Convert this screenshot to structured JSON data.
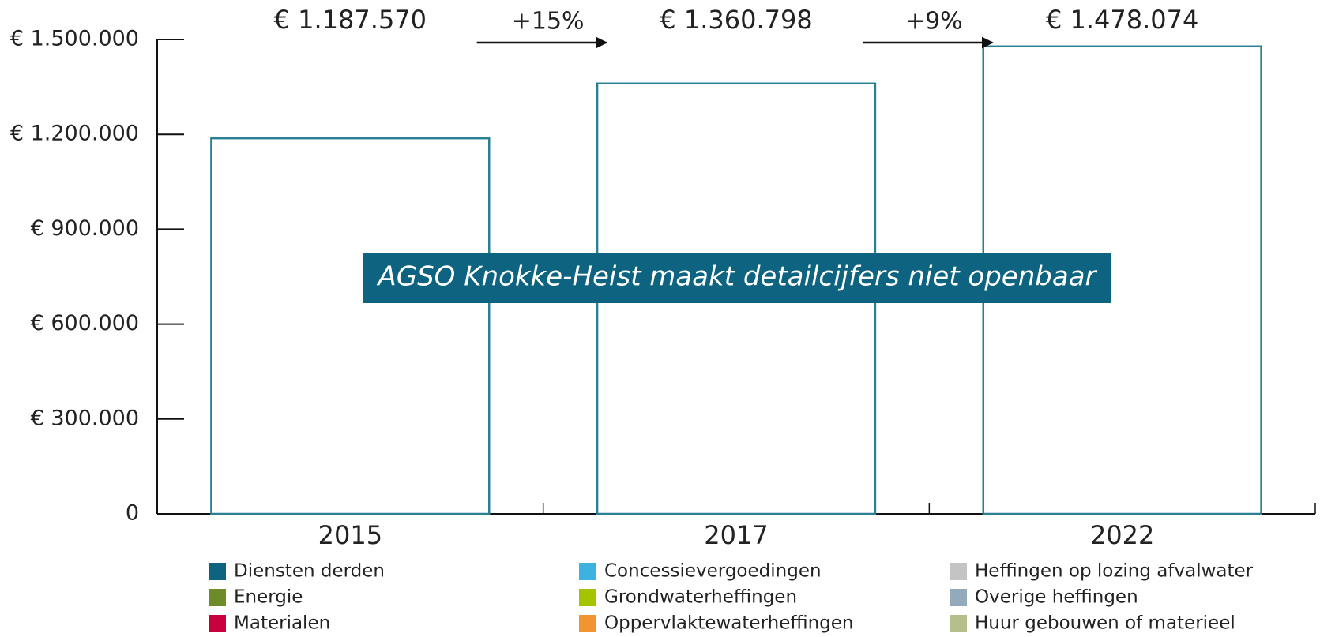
{
  "chart_data": {
    "type": "bar",
    "categories": [
      "2015",
      "2017",
      "2022"
    ],
    "values": [
      1187570,
      1360798,
      1478074
    ],
    "value_labels": [
      "€ 1.187.570",
      "€ 1.360.798",
      "€ 1.478.074"
    ],
    "color": "#2a7f92",
    "ylim": [
      0,
      1500000
    ],
    "yticks": [
      {
        "value": 0,
        "label": "0"
      },
      {
        "value": 300000,
        "label": "€ 300.000"
      },
      {
        "value": 600000,
        "label": "€ 600.000"
      },
      {
        "value": 900000,
        "label": "€ 900.000"
      },
      {
        "value": 1200000,
        "label": "€ 1.200.000"
      },
      {
        "value": 1500000,
        "label": "€ 1.500.000"
      }
    ],
    "annotations": [
      "+15%",
      "+9%",
      "AGSO Knokke-Heist maakt detailcijfers niet openbaar"
    ],
    "legend": [
      {
        "name": "Diensten derden",
        "color": "#0e6480"
      },
      {
        "name": "Energie",
        "color": "#6e8b2a"
      },
      {
        "name": "Materialen",
        "color": "#c8003c"
      },
      {
        "name": "Concessievergoedingen",
        "color": "#3db1e0"
      },
      {
        "name": "Grondwaterheffingen",
        "color": "#a5c400"
      },
      {
        "name": "Oppervlaktewaterheffingen",
        "color": "#f39433"
      },
      {
        "name": "Heffingen op lozing afvalwater",
        "color": "#c4c4c4"
      },
      {
        "name": "Overige heffingen",
        "color": "#93a9bc"
      },
      {
        "name": "Huur gebouwen of materieel",
        "color": "#b5bf8c"
      }
    ]
  }
}
